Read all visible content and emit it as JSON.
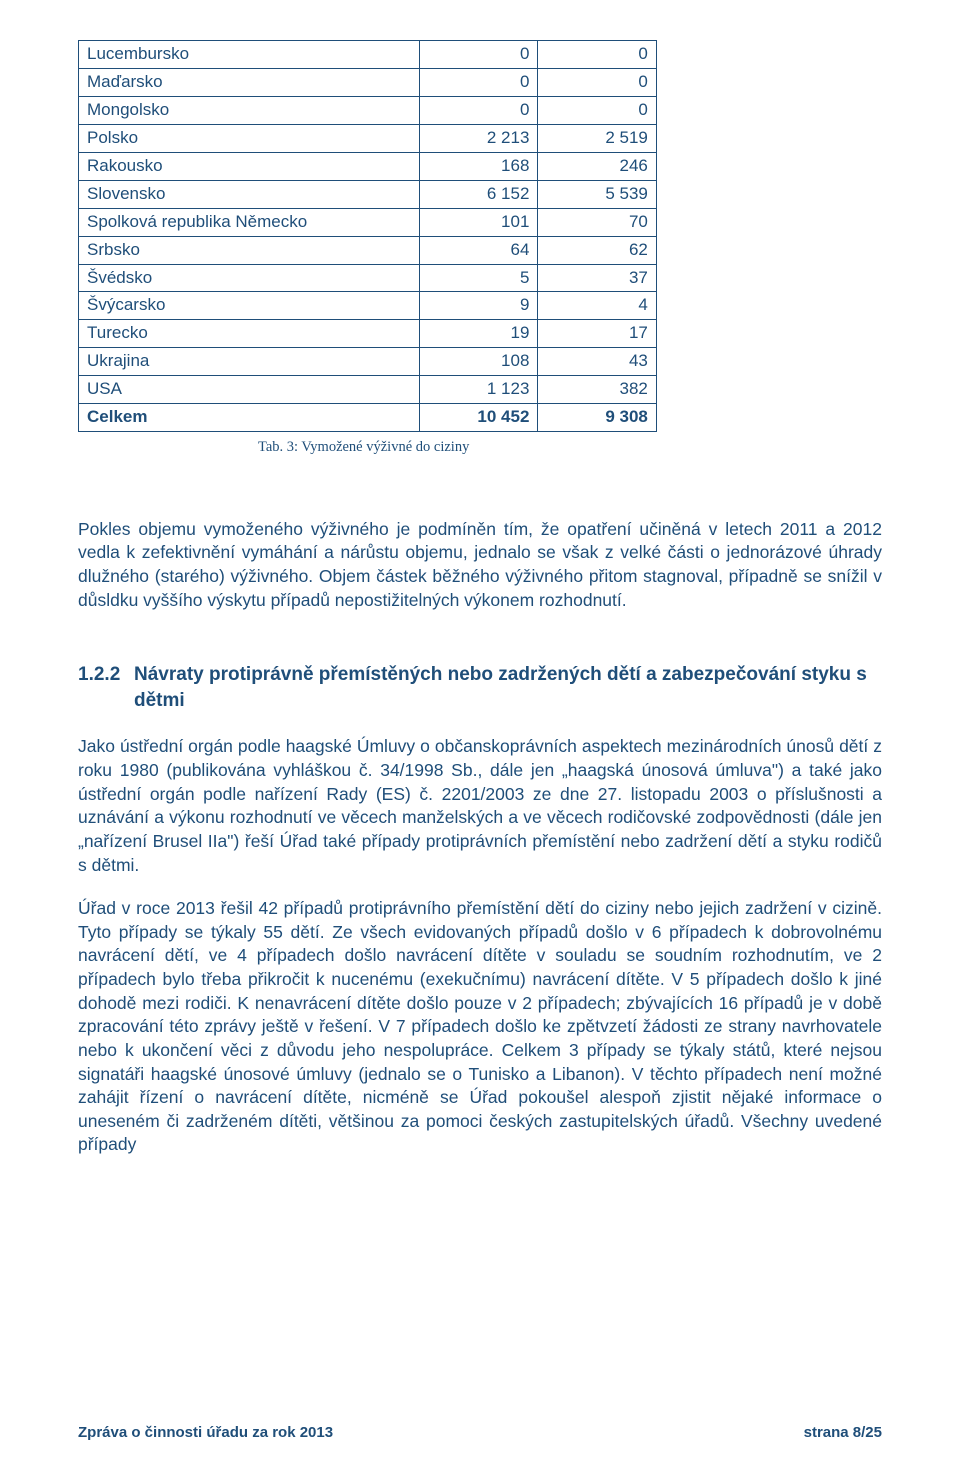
{
  "table": {
    "border_color": "#1f4e79",
    "text_color": "#1f4e79",
    "font_size_pt": 12,
    "col_widths_pct": [
      59,
      20.5,
      20.5
    ],
    "col_align": [
      "left",
      "right",
      "right"
    ],
    "rows": [
      {
        "name": "Lucembursko",
        "v1": "0",
        "v2": "0"
      },
      {
        "name": "Maďarsko",
        "v1": "0",
        "v2": "0"
      },
      {
        "name": "Mongolsko",
        "v1": "0",
        "v2": "0"
      },
      {
        "name": "Polsko",
        "v1": "2 213",
        "v2": "2 519"
      },
      {
        "name": "Rakousko",
        "v1": "168",
        "v2": "246"
      },
      {
        "name": "Slovensko",
        "v1": "6 152",
        "v2": "5 539"
      },
      {
        "name": "Spolková republika Německo",
        "v1": "101",
        "v2": "70"
      },
      {
        "name": "Srbsko",
        "v1": "64",
        "v2": "62"
      },
      {
        "name": "Švédsko",
        "v1": "5",
        "v2": "37"
      },
      {
        "name": "Švýcarsko",
        "v1": "9",
        "v2": "4"
      },
      {
        "name": "Turecko",
        "v1": "19",
        "v2": "17"
      },
      {
        "name": "Ukrajina",
        "v1": "108",
        "v2": "43"
      },
      {
        "name": "USA",
        "v1": "1 123",
        "v2": "382"
      }
    ],
    "total": {
      "name": "Celkem",
      "v1": "10 452",
      "v2": "9 308"
    }
  },
  "caption": "Tab. 3: Vymožené výživné do ciziny",
  "para1": "Pokles objemu vymoženého výživného je podmíněn tím, že opatření učiněná v letech 2011 a 2012 vedla k zefektivnění vymáhání a nárůstu objemu, jednalo se však z velké části o jednorázové úhrady dlužného (starého) výživného. Objem částek běžného výživného přitom stagnoval, případně se snížil v důsldku vyššího výskytu případů nepostižitelných výkonem rozhodnutí.",
  "section": {
    "number": "1.2.2",
    "title": "Návraty protiprávně přemístěných nebo zadržených dětí a zabezpečování styku s dětmi"
  },
  "para2": "Jako ústřední orgán podle haagské Úmluvy o občanskoprávních aspektech mezinárodních únosů dětí z roku 1980 (publikována vyhláškou č. 34/1998 Sb., dále jen „haagská únosová úmluva\") a také jako ústřední orgán podle nařízení Rady (ES) č. 2201/2003 ze dne 27. listopadu 2003 o příslušnosti a uznávání a výkonu rozhodnutí ve věcech manželských a ve věcech rodičovské zodpovědnosti (dále jen „nařízení Brusel IIa\") řeší Úřad také případy protiprávních přemístění nebo zadržení dětí a styku rodičů s dětmi.",
  "para3": "Úřad v roce 2013 řešil 42 případů protiprávního přemístění dětí do ciziny nebo jejich zadržení v cizině. Tyto případy se týkaly 55 dětí. Ze všech evidovaných případů došlo v 6 případech k dobrovolnému navrácení dětí, ve 4 případech došlo navrácení dítěte v souladu se soudním rozhodnutím, ve 2 případech bylo třeba přikročit k nucenému (exekučnímu) navrácení dítěte. V 5 případech došlo k jiné dohodě mezi rodiči. K nenavrácení dítěte došlo pouze v 2 případech; zbývajících 16 případů je v době zpracování této zprávy ještě v řešení. V 7 případech došlo ke zpětvzetí žádosti ze strany navrhovatele nebo k ukončení věci z důvodu jeho nespolupráce. Celkem 3 případy se týkaly států, které nejsou signatáři haagské únosové úmluvy (jednalo se o Tunisko a Libanon). V těchto případech není možné zahájit řízení o navrácení dítěte, nicméně se Úřad pokoušel alespoň zjistit nějaké informace o uneseném či zadrženém dítěti, většinou za pomoci českých zastupitelských úřadů. Všechny uvedené případy",
  "footer": {
    "left": "Zpráva o činnosti úřadu za rok 2013",
    "right": "strana 8/25"
  },
  "colors": {
    "text": "#1f4e79",
    "background": "#ffffff"
  },
  "typography": {
    "body_font": "Arial",
    "body_size_pt": 12,
    "caption_font": "Georgia",
    "caption_size_pt": 10,
    "heading_size_pt": 13
  }
}
